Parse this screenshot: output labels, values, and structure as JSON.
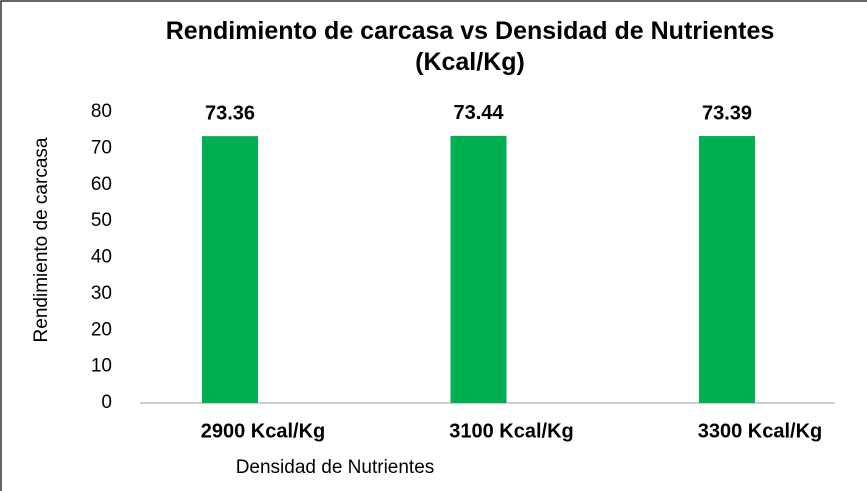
{
  "chart_data": {
    "type": "bar",
    "title": "Rendimiento de carcasa  vs Densidad de Nutrientes (Kcal/Kg)",
    "x_label": "Densidad de Nutrientes",
    "y_label": "Rendimiento de carcasa",
    "categories": [
      "2900 Kcal/Kg",
      "3100 Kcal/Kg",
      "3300 Kcal/Kg"
    ],
    "values": [
      73.36,
      73.44,
      73.39
    ],
    "color": "#00b050",
    "ylim": [
      0,
      80
    ],
    "yticks": [
      0,
      10,
      20,
      30,
      40,
      50,
      60,
      70,
      80
    ],
    "grid": false
  }
}
